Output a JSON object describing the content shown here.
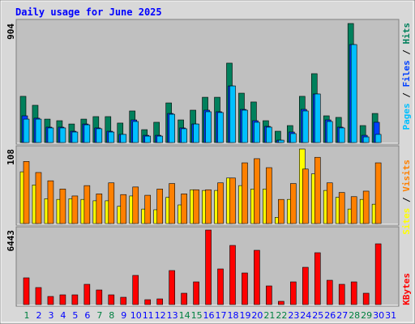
{
  "title": "Daily usage for June 2025",
  "legend_separator": "/",
  "chart_data": [
    {
      "type": "bar",
      "ylim": [
        0,
        904
      ],
      "yticks": [
        904
      ],
      "series": [
        {
          "name": "Pages",
          "color": "#00c0ff",
          "values": [
            178,
            178,
            111,
            111,
            80,
            135,
            105,
            80,
            62,
            160,
            49,
            49,
            215,
            105,
            141,
            234,
            228,
            430,
            246,
            154,
            117,
            18,
            68,
            240,
            369,
            160,
            111,
            744,
            43,
            62,
            null
          ]
        },
        {
          "name": "Files",
          "color": "#0040ff",
          "values": [
            203,
            185,
            117,
            117,
            86,
            141,
            111,
            86,
            62,
            172,
            55,
            55,
            221,
            111,
            141,
            246,
            234,
            430,
            252,
            166,
            123,
            18,
            80,
            252,
            369,
            172,
            117,
            744,
            55,
            154,
            null
          ]
        },
        {
          "name": "Hits",
          "color": "#00805c",
          "values": [
            351,
            283,
            178,
            166,
            141,
            178,
            197,
            197,
            148,
            240,
            98,
            154,
            301,
            172,
            246,
            344,
            344,
            603,
            375,
            308,
            166,
            86,
            129,
            351,
            523,
            203,
            191,
            904,
            129,
            221,
            null
          ]
        }
      ]
    },
    {
      "type": "bar",
      "ylim": [
        0,
        108
      ],
      "yticks": [
        108
      ],
      "series": [
        {
          "name": "Sites",
          "color": "#ffff00",
          "values": [
            75,
            56,
            36,
            35,
            36,
            35,
            33,
            33,
            25,
            40,
            21,
            20,
            38,
            27,
            49,
            48,
            48,
            66,
            55,
            50,
            50,
            9,
            35,
            108,
            72,
            48,
            38,
            21,
            35,
            28,
            null
          ]
        },
        {
          "name": "Visits",
          "color": "#ff8000",
          "values": [
            90,
            74,
            62,
            50,
            40,
            55,
            43,
            59,
            42,
            53,
            41,
            50,
            58,
            43,
            49,
            49,
            59,
            66,
            88,
            94,
            81,
            35,
            58,
            79,
            96,
            59,
            45,
            39,
            47,
            88,
            null
          ]
        }
      ]
    },
    {
      "type": "bar",
      "ylim": [
        0,
        6443
      ],
      "yticks": [
        6443
      ],
      "categories": [
        "1",
        "2",
        "3",
        "4",
        "5",
        "6",
        "7",
        "8",
        "9",
        "10",
        "11",
        "12",
        "13",
        "14",
        "15",
        "16",
        "17",
        "18",
        "19",
        "20",
        "21",
        "22",
        "23",
        "24",
        "25",
        "26",
        "27",
        "28",
        "29",
        "30",
        "31"
      ],
      "category_colors": [
        "#008040",
        "#0000ff",
        "#0000ff",
        "#0000ff",
        "#0000ff",
        "#0000ff",
        "#008040",
        "#008040",
        "#0000ff",
        "#0000ff",
        "#0000ff",
        "#0000ff",
        "#0000ff",
        "#008040",
        "#008040",
        "#0000ff",
        "#0000ff",
        "#0000ff",
        "#0000ff",
        "#0000ff",
        "#008040",
        "#008040",
        "#0000ff",
        "#0000ff",
        "#0000ff",
        "#0000ff",
        "#0000ff",
        "#008040",
        "#008040",
        "#0000ff",
        "#0000ff"
      ],
      "series": [
        {
          "name": "KBytes",
          "color": "#ff0000",
          "values": [
            2311,
            1471,
            700,
            840,
            840,
            1751,
            1261,
            840,
            630,
            2521,
            420,
            490,
            2941,
            980,
            1961,
            6443,
            3081,
            5112,
            2731,
            4692,
            1611,
            280,
            1961,
            3221,
            4482,
            2101,
            1751,
            1961,
            980,
            5252,
            null
          ]
        }
      ]
    }
  ]
}
